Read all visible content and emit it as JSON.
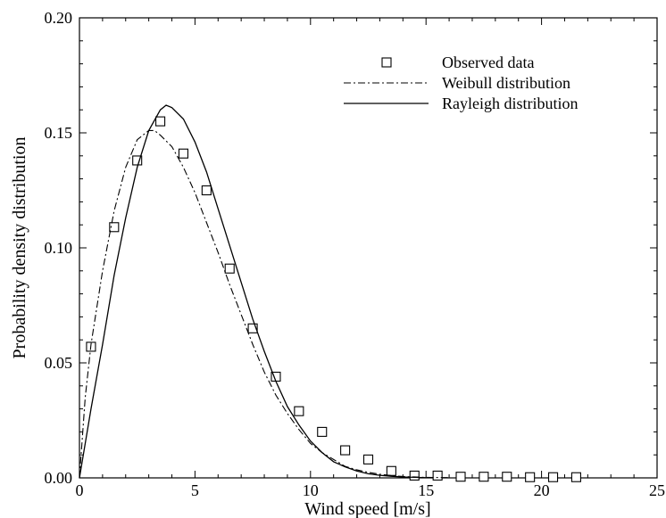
{
  "chart_data": {
    "type": "line",
    "xlabel": "Wind speed [m/s]",
    "ylabel": "Probability density distribution",
    "xlim": [
      0,
      25
    ],
    "ylim": [
      0,
      0.2
    ],
    "x_ticks": [
      0,
      5,
      10,
      15,
      20,
      25
    ],
    "x_tick_labels": [
      "0",
      "5",
      "10",
      "15",
      "20",
      "25"
    ],
    "y_ticks": [
      0,
      0.05,
      0.1,
      0.15,
      0.2
    ],
    "y_tick_labels": [
      "0.00",
      "0.05",
      "0.10",
      "0.15",
      "0.20"
    ],
    "grid": false,
    "legend_position": "top-right",
    "series": [
      {
        "name": "Observed data",
        "style": "square-markers",
        "x": [
          0.5,
          1.5,
          2.5,
          3.5,
          4.5,
          5.5,
          6.5,
          7.5,
          8.5,
          9.5,
          10.5,
          11.5,
          12.5,
          13.5,
          14.5,
          15.5,
          16.5,
          17.5,
          18.5,
          19.5,
          20.5,
          21.5
        ],
        "y": [
          0.057,
          0.109,
          0.138,
          0.155,
          0.141,
          0.125,
          0.091,
          0.065,
          0.044,
          0.029,
          0.02,
          0.012,
          0.008,
          0.003,
          0.001,
          0.001,
          0.0005,
          0.0005,
          0.0005,
          0.0003,
          0.0003,
          0.0003
        ]
      },
      {
        "name": "Weibull distribution",
        "style": "dash-dot",
        "x": [
          0,
          0.25,
          0.5,
          1,
          1.5,
          2,
          2.5,
          3,
          3.25,
          3.5,
          4,
          4.5,
          5,
          5.5,
          6,
          6.5,
          7,
          7.5,
          8,
          8.5,
          9,
          9.5,
          10,
          10.5,
          11,
          11.5,
          12,
          12.5,
          13,
          13.5,
          14,
          14.5,
          15,
          16
        ],
        "y": [
          0,
          0.035,
          0.058,
          0.09,
          0.116,
          0.135,
          0.147,
          0.151,
          0.151,
          0.149,
          0.144,
          0.135,
          0.124,
          0.111,
          0.098,
          0.084,
          0.071,
          0.058,
          0.046,
          0.036,
          0.028,
          0.021,
          0.015,
          0.011,
          0.008,
          0.005,
          0.0035,
          0.0024,
          0.0016,
          0.001,
          0.0006,
          0.0004,
          0.0002,
          0.0001
        ]
      },
      {
        "name": "Rayleigh distribution",
        "style": "solid",
        "x": [
          0,
          0.5,
          1,
          1.5,
          2,
          2.5,
          3,
          3.5,
          3.75,
          4,
          4.5,
          5,
          5.5,
          6,
          6.5,
          7,
          7.5,
          8,
          8.5,
          9,
          9.5,
          10,
          10.5,
          11,
          11.5,
          12,
          12.5,
          13,
          13.5,
          14,
          15
        ],
        "y": [
          0,
          0.03,
          0.058,
          0.088,
          0.113,
          0.135,
          0.151,
          0.16,
          0.162,
          0.161,
          0.156,
          0.146,
          0.133,
          0.117,
          0.101,
          0.085,
          0.069,
          0.055,
          0.042,
          0.031,
          0.023,
          0.016,
          0.011,
          0.007,
          0.0048,
          0.003,
          0.0018,
          0.0011,
          0.0007,
          0.0004,
          0.0001
        ]
      }
    ]
  }
}
